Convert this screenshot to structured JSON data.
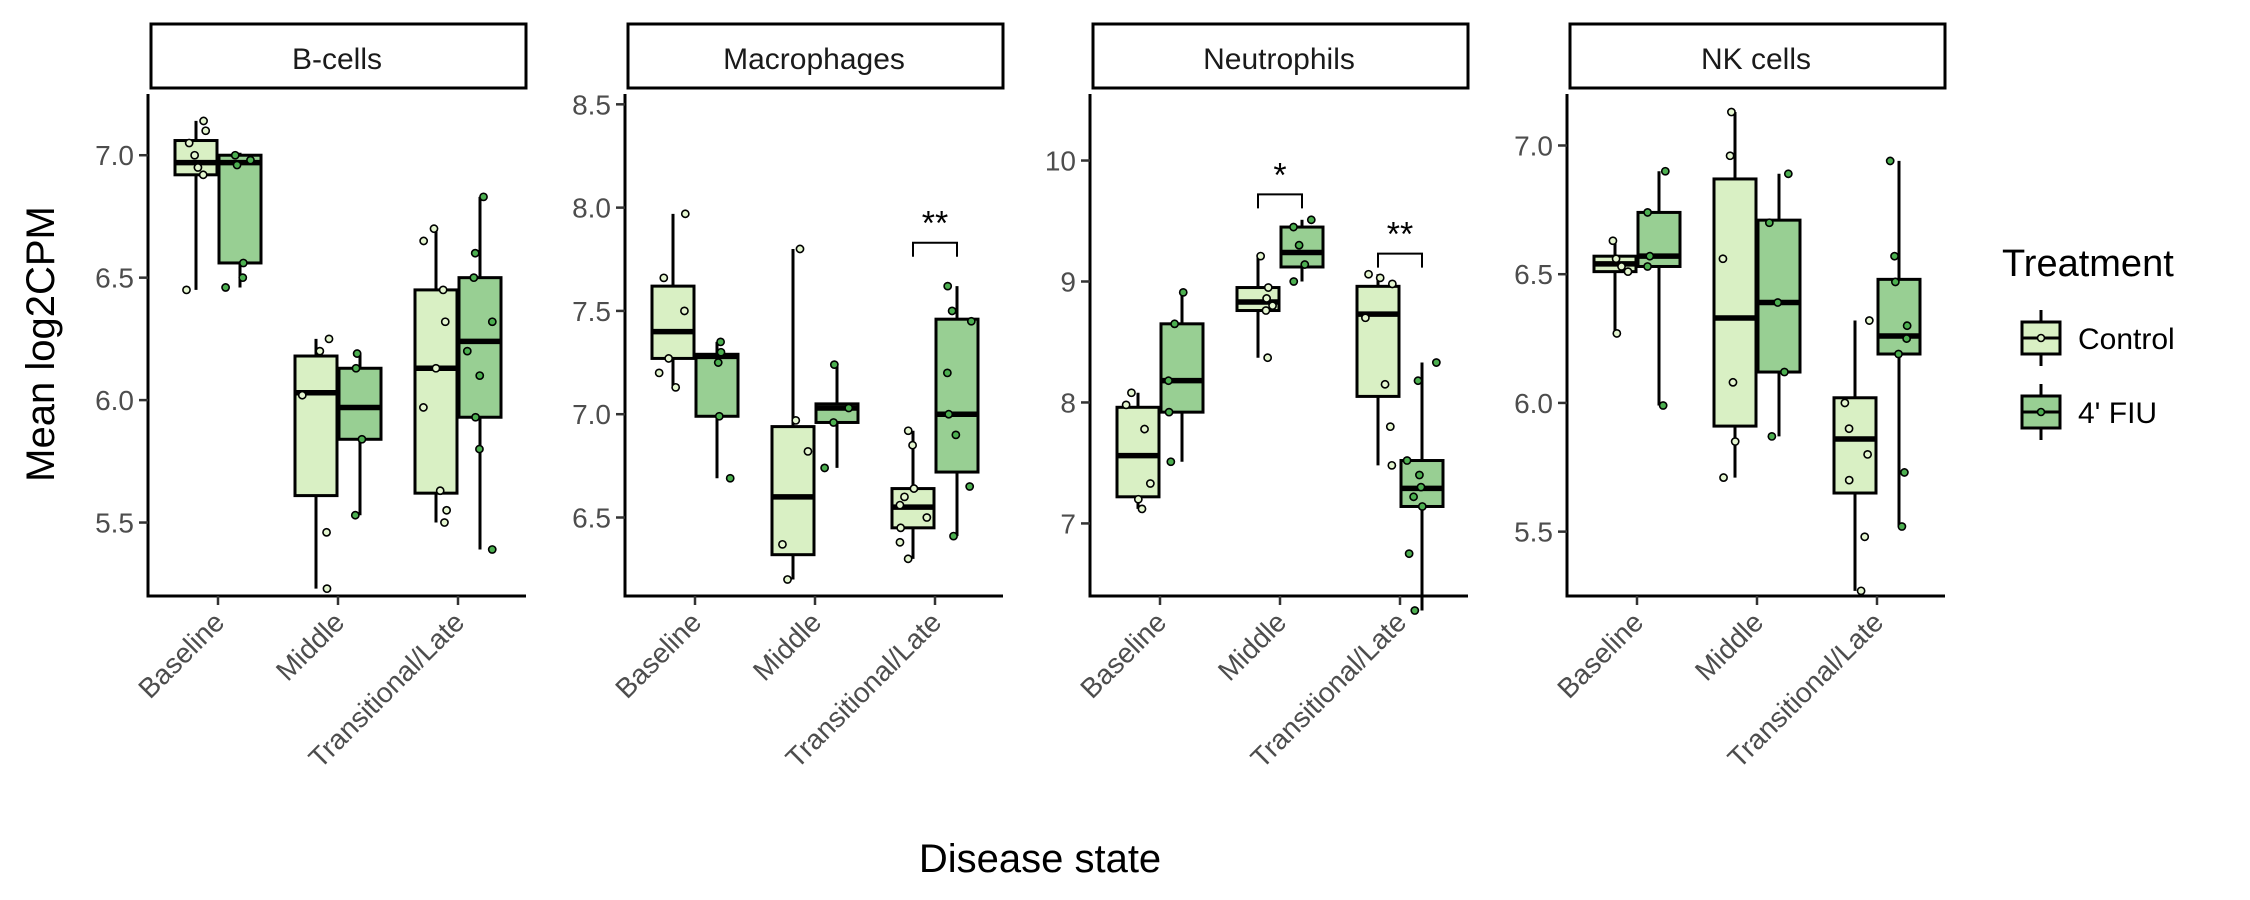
{
  "chart_data": {
    "type": "box",
    "xlabel": "Disease state",
    "ylabel": "Mean log2CPM",
    "categories": [
      "Baseline",
      "Middle",
      "Transitional/Late"
    ],
    "legend": {
      "title": "Treatment",
      "placement": "right",
      "items": [
        {
          "name": "Control",
          "color": "#d9f0c4"
        },
        {
          "name": "4' FIU",
          "color": "#98cf93"
        }
      ]
    },
    "colors": {
      "control": "#d9f0c4",
      "fiu": "#98cf93",
      "outline": "#000000"
    },
    "panels": [
      {
        "title": "B-cells",
        "ylim": [
          5.2,
          7.25
        ],
        "yticks": [
          5.5,
          6.0,
          6.5,
          7.0
        ],
        "ytick_labels": [
          "5.5",
          "6.0",
          "6.5",
          "7.0"
        ],
        "groups": [
          {
            "category": "Baseline",
            "treatment": "Control",
            "min": 6.45,
            "q1": 6.92,
            "median": 6.97,
            "q3": 7.06,
            "max": 7.14,
            "points": [
              6.45,
              6.92,
              6.95,
              7.0,
              7.05,
              7.1,
              7.14
            ]
          },
          {
            "category": "Baseline",
            "treatment": "4' FIU",
            "min": 6.46,
            "q1": 6.56,
            "median": 6.97,
            "q3": 7.0,
            "max": 7.01,
            "points": [
              6.46,
              6.5,
              6.56,
              6.96,
              6.98,
              7.0
            ]
          },
          {
            "category": "Middle",
            "treatment": "Control",
            "min": 5.23,
            "q1": 5.61,
            "median": 6.03,
            "q3": 6.18,
            "max": 6.25,
            "points": [
              5.23,
              5.46,
              6.02,
              6.2,
              6.25
            ]
          },
          {
            "category": "Middle",
            "treatment": "4' FIU",
            "min": 5.53,
            "q1": 5.84,
            "median": 5.97,
            "q3": 6.13,
            "max": 6.19,
            "points": [
              5.53,
              5.84,
              6.13,
              6.19
            ]
          },
          {
            "category": "Transitional/Late",
            "treatment": "Control",
            "min": 5.5,
            "q1": 5.62,
            "median": 6.13,
            "q3": 6.45,
            "max": 6.7,
            "points": [
              5.5,
              5.55,
              5.63,
              5.97,
              6.13,
              6.32,
              6.45,
              6.65,
              6.7
            ]
          },
          {
            "category": "Transitional/Late",
            "treatment": "4' FIU",
            "min": 5.39,
            "q1": 5.93,
            "median": 6.24,
            "q3": 6.5,
            "max": 6.83,
            "points": [
              5.39,
              5.8,
              5.93,
              6.1,
              6.2,
              6.32,
              6.5,
              6.6,
              6.83
            ]
          }
        ],
        "annotations": []
      },
      {
        "title": "Macrophages",
        "ylim": [
          6.12,
          8.55
        ],
        "yticks": [
          6.5,
          7.0,
          7.5,
          8.0,
          8.5
        ],
        "ytick_labels": [
          "6.5",
          "7.0",
          "7.5",
          "8.0",
          "8.5"
        ],
        "groups": [
          {
            "category": "Baseline",
            "treatment": "Control",
            "min": 7.13,
            "q1": 7.27,
            "median": 7.4,
            "q3": 7.62,
            "max": 7.97,
            "points": [
              7.13,
              7.2,
              7.27,
              7.5,
              7.66,
              7.97
            ]
          },
          {
            "category": "Baseline",
            "treatment": "4' FIU",
            "min": 6.69,
            "q1": 6.99,
            "median": 7.28,
            "q3": 7.29,
            "max": 7.35,
            "points": [
              6.69,
              6.99,
              7.25,
              7.3,
              7.35
            ]
          },
          {
            "category": "Middle",
            "treatment": "Control",
            "min": 6.2,
            "q1": 6.32,
            "median": 6.6,
            "q3": 6.94,
            "max": 7.8,
            "points": [
              6.2,
              6.37,
              6.82,
              6.97,
              7.8
            ]
          },
          {
            "category": "Middle",
            "treatment": "4' FIU",
            "min": 6.74,
            "q1": 6.96,
            "median": 7.03,
            "q3": 7.05,
            "max": 7.24,
            "points": [
              6.74,
              6.96,
              7.03,
              7.24
            ]
          },
          {
            "category": "Transitional/Late",
            "treatment": "Control",
            "min": 6.3,
            "q1": 6.45,
            "median": 6.55,
            "q3": 6.64,
            "max": 6.92,
            "points": [
              6.3,
              6.38,
              6.45,
              6.5,
              6.56,
              6.6,
              6.64,
              6.85,
              6.92
            ]
          },
          {
            "category": "Transitional/Late",
            "treatment": "4' FIU",
            "min": 6.41,
            "q1": 6.72,
            "median": 7.0,
            "q3": 7.46,
            "max": 7.62,
            "points": [
              6.41,
              6.65,
              6.9,
              7.0,
              7.2,
              7.45,
              7.5,
              7.62
            ]
          }
        ],
        "annotations": [
          {
            "category": "Transitional/Late",
            "label": "**",
            "y": 7.83
          }
        ]
      },
      {
        "title": "Neutrophils",
        "ylim": [
          6.4,
          10.55
        ],
        "yticks": [
          7,
          8,
          9,
          10
        ],
        "ytick_labels": [
          "7",
          "8",
          "9",
          "10"
        ],
        "groups": [
          {
            "category": "Baseline",
            "treatment": "Control",
            "min": 7.12,
            "q1": 7.22,
            "median": 7.56,
            "q3": 7.96,
            "max": 8.08,
            "points": [
              7.12,
              7.2,
              7.33,
              7.78,
              7.98,
              8.08
            ]
          },
          {
            "category": "Baseline",
            "treatment": "4' FIU",
            "min": 7.51,
            "q1": 7.92,
            "median": 8.18,
            "q3": 8.65,
            "max": 8.91,
            "points": [
              7.51,
              7.92,
              8.18,
              8.65,
              8.91
            ]
          },
          {
            "category": "Middle",
            "treatment": "Control",
            "min": 8.37,
            "q1": 8.76,
            "median": 8.83,
            "q3": 8.95,
            "max": 9.21,
            "points": [
              8.37,
              8.76,
              8.8,
              8.86,
              8.95,
              9.21
            ]
          },
          {
            "category": "Middle",
            "treatment": "4' FIU",
            "min": 9.0,
            "q1": 9.12,
            "median": 9.24,
            "q3": 9.45,
            "max": 9.51,
            "points": [
              9.0,
              9.14,
              9.3,
              9.45,
              9.51
            ]
          },
          {
            "category": "Transitional/Late",
            "treatment": "Control",
            "min": 7.48,
            "q1": 8.05,
            "median": 8.73,
            "q3": 8.96,
            "max": 9.06,
            "points": [
              7.48,
              7.8,
              8.15,
              8.7,
              8.98,
              9.03,
              9.06
            ]
          },
          {
            "category": "Transitional/Late",
            "treatment": "4' FIU",
            "min": 6.28,
            "q1": 7.14,
            "median": 7.29,
            "q3": 7.52,
            "max": 8.33,
            "points": [
              6.28,
              6.75,
              7.14,
              7.22,
              7.3,
              7.4,
              7.52,
              8.18,
              8.33
            ]
          }
        ],
        "annotations": [
          {
            "category": "Middle",
            "label": "*",
            "y": 9.72
          },
          {
            "category": "Transitional/Late",
            "label": "**",
            "y": 9.23
          }
        ]
      },
      {
        "title": "NK cells",
        "ylim": [
          5.25,
          7.2
        ],
        "yticks": [
          5.5,
          6.0,
          6.5,
          7.0
        ],
        "ytick_labels": [
          "5.5",
          "6.0",
          "6.5",
          "7.0"
        ],
        "groups": [
          {
            "category": "Baseline",
            "treatment": "Control",
            "min": 6.27,
            "q1": 6.51,
            "median": 6.54,
            "q3": 6.57,
            "max": 6.63,
            "points": [
              6.27,
              6.51,
              6.53,
              6.56,
              6.63
            ]
          },
          {
            "category": "Baseline",
            "treatment": "4' FIU",
            "min": 5.99,
            "q1": 6.53,
            "median": 6.57,
            "q3": 6.74,
            "max": 6.9,
            "points": [
              5.99,
              6.53,
              6.57,
              6.74,
              6.9
            ]
          },
          {
            "category": "Middle",
            "treatment": "Control",
            "min": 5.71,
            "q1": 5.91,
            "median": 6.33,
            "q3": 6.87,
            "max": 7.13,
            "points": [
              5.71,
              5.85,
              6.08,
              6.56,
              6.96,
              7.13
            ]
          },
          {
            "category": "Middle",
            "treatment": "4' FIU",
            "min": 5.87,
            "q1": 6.12,
            "median": 6.39,
            "q3": 6.71,
            "max": 6.89,
            "points": [
              5.87,
              6.12,
              6.39,
              6.7,
              6.89
            ]
          },
          {
            "category": "Transitional/Late",
            "treatment": "Control",
            "min": 5.27,
            "q1": 5.65,
            "median": 5.86,
            "q3": 6.02,
            "max": 6.32,
            "points": [
              5.27,
              5.48,
              5.7,
              5.8,
              5.9,
              6.0,
              6.32
            ]
          },
          {
            "category": "Transitional/Late",
            "treatment": "4' FIU",
            "min": 5.52,
            "q1": 6.19,
            "median": 6.26,
            "q3": 6.48,
            "max": 6.94,
            "points": [
              5.52,
              5.73,
              6.19,
              6.25,
              6.3,
              6.47,
              6.57,
              6.94
            ]
          }
        ],
        "annotations": []
      }
    ]
  }
}
